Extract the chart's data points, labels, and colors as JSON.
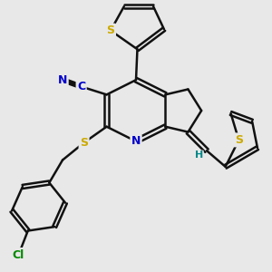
{
  "bg_color": "#e8e8e8",
  "atom_colors": {
    "C": "#000000",
    "N": "#0000cc",
    "S": "#ccaa00",
    "Cl": "#008800",
    "H": "#008888"
  },
  "bond_color": "#111111",
  "bond_width": 1.8,
  "fig_size": [
    3.0,
    3.0
  ],
  "dpi": 100
}
